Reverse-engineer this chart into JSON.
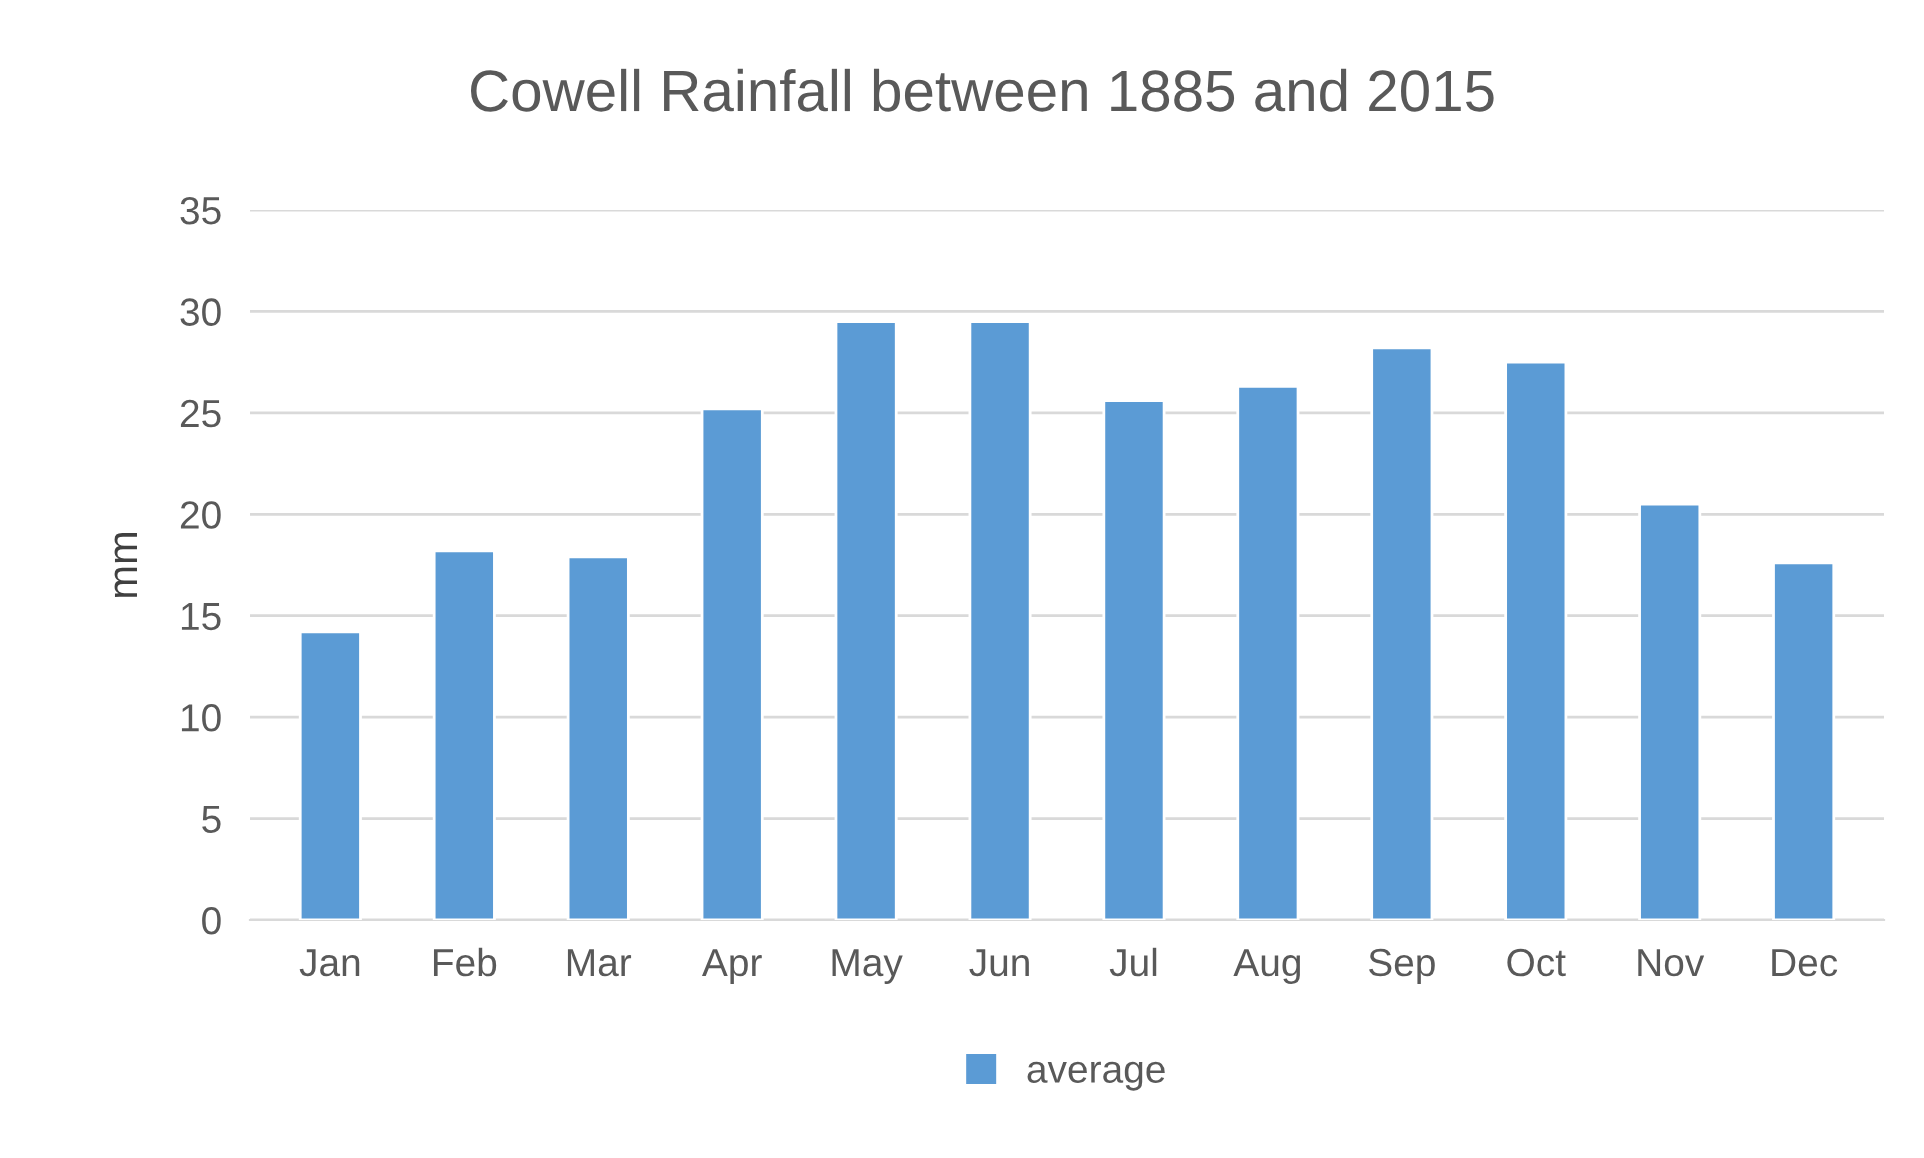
{
  "chart_data": {
    "type": "bar",
    "title": "Cowell Rainfall between 1885 and 2015",
    "ylabel": "mm",
    "categories": [
      "Jan",
      "Feb",
      "Mar",
      "Apr",
      "May",
      "Jun",
      "Jul",
      "Aug",
      "Sep",
      "Oct",
      "Nov",
      "Dec"
    ],
    "series": [
      {
        "name": "average",
        "color": "#5b9bd5",
        "values": [
          14.2,
          18.2,
          17.9,
          25.2,
          29.5,
          29.5,
          25.6,
          26.3,
          28.2,
          27.5,
          20.5,
          17.6
        ]
      }
    ],
    "ylim": [
      0,
      35
    ],
    "yticks": [
      0,
      5,
      10,
      15,
      20,
      25,
      30,
      35
    ],
    "grid": "y",
    "legend": "bottom"
  }
}
